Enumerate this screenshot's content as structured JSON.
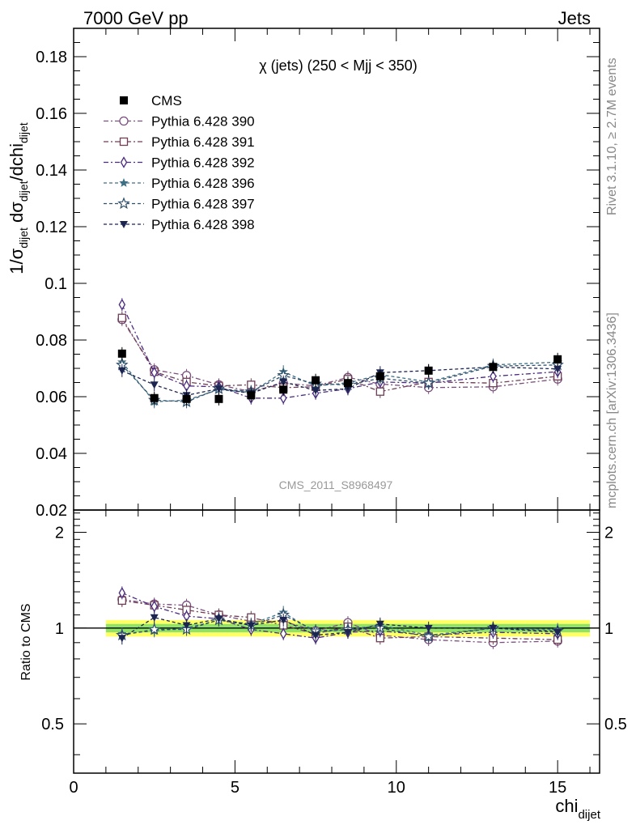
{
  "header": {
    "energy_label": "7000 GeV pp",
    "process_label": "Jets"
  },
  "side_labels": {
    "rivet": "Rivet 3.1.10, ≥ 2.7M events",
    "mcplots": "mcplots.cern.ch [arXiv:1306.3436]"
  },
  "watermark": "CMS_2011_S8968497",
  "colors": {
    "cms": "#000000",
    "p390": "#7a4f7e",
    "p391": "#6e3f55",
    "p392": "#4a2b80",
    "p396": "#3d6e83",
    "p397": "#2f4f6b",
    "p398": "#1c2550",
    "band_inner": "#33cc66",
    "band_outer": "#ffff66"
  },
  "chart_data": [
    {
      "type": "line",
      "title": "χ (jets) (250 < Mjj <  350)",
      "ylabel": "1/σ_dijet dσ_dijet/dchi_dijet",
      "xlabel": "chi_dijet",
      "xlim": [
        0,
        16.3
      ],
      "ylim": [
        0.02,
        0.19
      ],
      "yticks": [
        0.02,
        0.04,
        0.06,
        0.08,
        0.1,
        0.12,
        0.14,
        0.16,
        0.18
      ],
      "ytick_labels": [
        "0.02",
        "0.04",
        "0.06",
        "0.08",
        "0.1",
        "0.12",
        "0.14",
        "0.16",
        "0.18"
      ],
      "legend_position": "top-left",
      "x": [
        1.5,
        2.5,
        3.5,
        4.5,
        5.5,
        6.5,
        7.5,
        8.5,
        9.5,
        11,
        13,
        15
      ],
      "series": [
        {
          "name": "CMS",
          "marker": "square-filled",
          "values": [
            0.0752,
            0.0595,
            0.0592,
            0.0592,
            0.0605,
            0.0625,
            0.0658,
            0.0648,
            0.0672,
            0.0692,
            0.0705,
            0.0732
          ]
        },
        {
          "name": "Pythia 6.428 390",
          "marker": "circle-open",
          "values": [
            0.0872,
            0.0695,
            0.0675,
            0.0642,
            0.0618,
            0.0648,
            0.0638,
            0.0668,
            0.0645,
            0.0632,
            0.0635,
            0.0662
          ]
        },
        {
          "name": "Pythia 6.428 391",
          "marker": "square-open",
          "values": [
            0.0878,
            0.0688,
            0.0652,
            0.0638,
            0.0642,
            0.0632,
            0.0635,
            0.0662,
            0.0618,
            0.0652,
            0.0648,
            0.0672
          ]
        },
        {
          "name": "Pythia 6.428 392",
          "marker": "diamond-open",
          "values": [
            0.0925,
            0.0685,
            0.0638,
            0.0635,
            0.0595,
            0.0595,
            0.0612,
            0.0628,
            0.0652,
            0.0648,
            0.0672,
            0.0688
          ]
        },
        {
          "name": "Pythia 6.428 396",
          "marker": "star-filled",
          "values": [
            0.0722,
            0.0582,
            0.0588,
            0.0625,
            0.0615,
            0.0688,
            0.0638,
            0.0648,
            0.0678,
            0.0652,
            0.0712,
            0.0722
          ]
        },
        {
          "name": "Pythia 6.428 397",
          "marker": "star-open",
          "values": [
            0.0712,
            0.0588,
            0.0582,
            0.0628,
            0.0618,
            0.0675,
            0.0645,
            0.0642,
            0.0665,
            0.0648,
            0.0708,
            0.0712
          ]
        },
        {
          "name": "Pythia 6.428 398",
          "marker": "triangle-down-filled",
          "values": [
            0.0692,
            0.0642,
            0.0605,
            0.0628,
            0.0612,
            0.0652,
            0.0622,
            0.0628,
            0.0685,
            0.0692,
            0.0705,
            0.0698
          ]
        }
      ]
    },
    {
      "type": "line",
      "ylabel": "Ratio to CMS",
      "xlabel": "chi_dijet",
      "xlim": [
        0,
        16.3
      ],
      "ylim": [
        0.35,
        2.35
      ],
      "log_y": true,
      "yticks": [
        0.5,
        1,
        2
      ],
      "ytick_labels": [
        "0.5",
        "1",
        "2"
      ],
      "xticks": [
        0,
        5,
        10,
        15
      ],
      "xtick_labels": [
        "0",
        "5",
        "10",
        "15"
      ],
      "x": [
        1.5,
        2.5,
        3.5,
        4.5,
        5.5,
        6.5,
        7.5,
        8.5,
        9.5,
        11,
        13,
        15
      ],
      "reference_line": 1,
      "band_inner_halfwidth": 0.03,
      "band_outer_halfwidth": 0.06,
      "series": [
        {
          "name": "Pythia 6.428 390",
          "values": [
            1.23,
            1.19,
            1.18,
            1.1,
            1.05,
            1.05,
            0.98,
            1.04,
            0.95,
            0.92,
            0.9,
            0.91
          ]
        },
        {
          "name": "Pythia 6.428 391",
          "values": [
            1.22,
            1.18,
            1.14,
            1.1,
            1.08,
            1.02,
            0.96,
            1.01,
            0.93,
            0.94,
            0.93,
            0.92
          ]
        },
        {
          "name": "Pythia 6.428 392",
          "values": [
            1.29,
            1.17,
            1.09,
            1.07,
            0.99,
            0.96,
            0.93,
            0.97,
            0.98,
            0.95,
            0.97,
            0.96
          ]
        },
        {
          "name": "Pythia 6.428 396",
          "values": [
            0.96,
            0.98,
            1.0,
            1.06,
            1.03,
            1.12,
            0.97,
            0.99,
            1.02,
            0.95,
            1.0,
            0.99
          ]
        },
        {
          "name": "Pythia 6.428 397",
          "values": [
            0.95,
            0.99,
            0.99,
            1.06,
            1.02,
            1.1,
            0.98,
            0.99,
            1.0,
            0.94,
            1.0,
            0.98
          ]
        },
        {
          "name": "Pythia 6.428 398",
          "values": [
            0.93,
            1.08,
            1.02,
            1.07,
            1.02,
            1.06,
            0.95,
            0.97,
            1.03,
            1.0,
            1.0,
            0.97
          ]
        }
      ]
    }
  ]
}
